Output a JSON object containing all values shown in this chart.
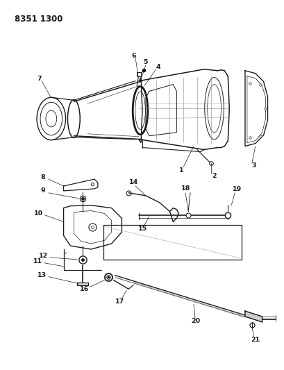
{
  "title": "8351 1300",
  "bg": "#ffffff",
  "lc": "#1a1a1a",
  "lc_med": "#444444",
  "lc_light": "#888888",
  "fig_w": 4.1,
  "fig_h": 5.33,
  "dpi": 100
}
